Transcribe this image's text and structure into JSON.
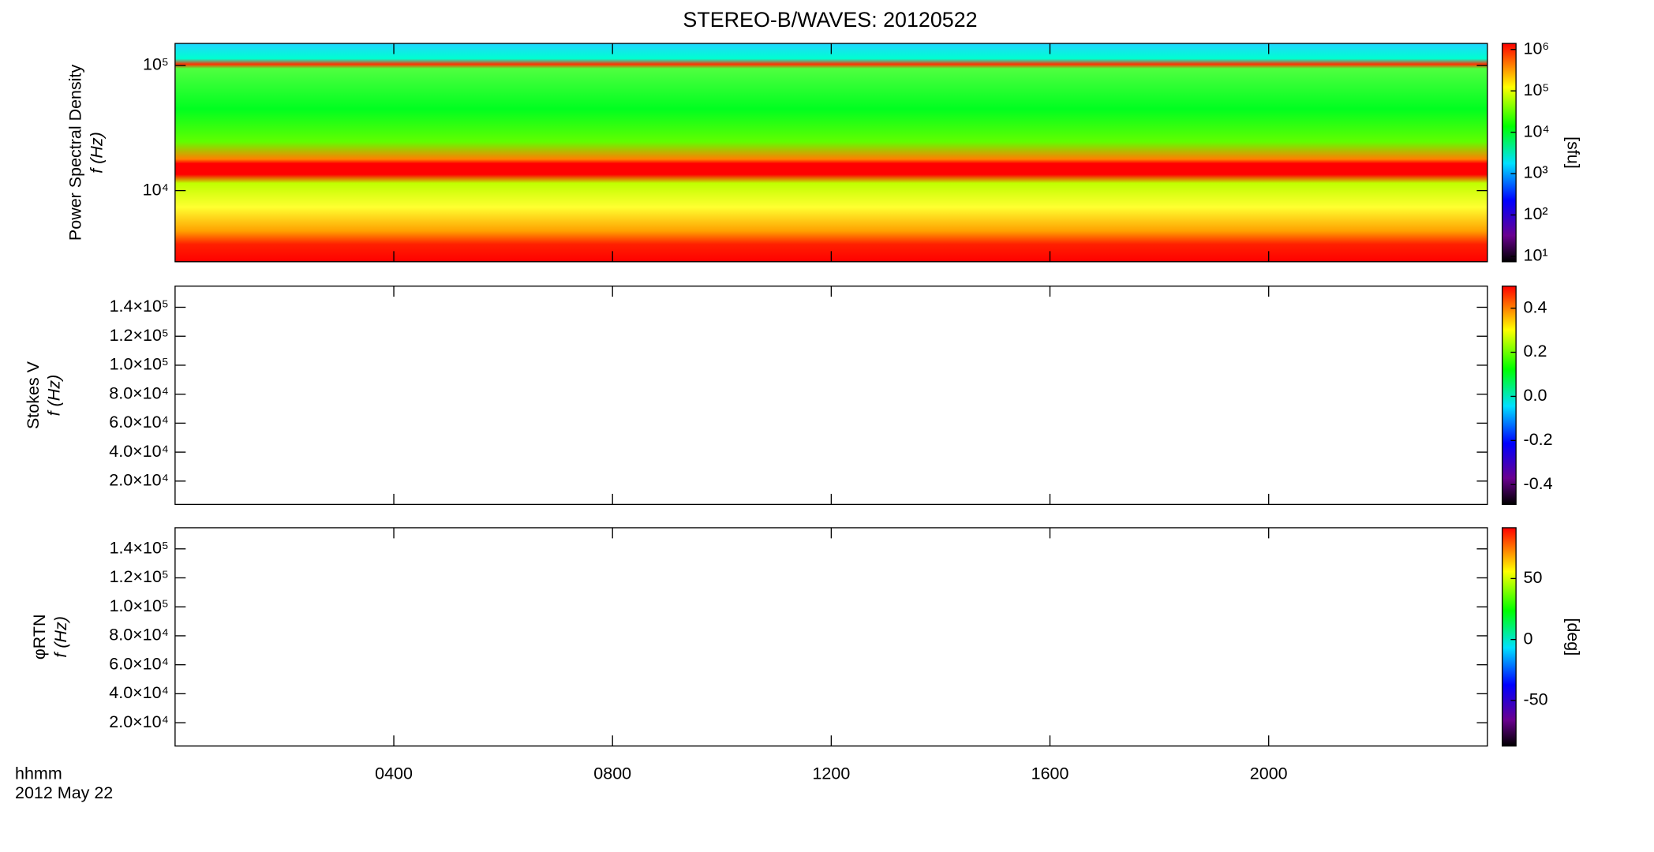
{
  "chart_data": [
    {
      "type": "heatmap",
      "title": "STEREO-B/WAVES: 20120522",
      "ylabel": [
        "Power Spectral Density",
        "f (Hz)"
      ],
      "log_y": true,
      "ylim": [
        2700,
        150000
      ],
      "yticks": [
        {
          "value": 10000,
          "label": "10⁴"
        },
        {
          "value": 100000,
          "label": "10⁵"
        }
      ],
      "colorbar": {
        "label": "[sfu]",
        "log": true,
        "lim": [
          7.4,
          1400000
        ],
        "ticks": [
          {
            "value": 10,
            "label": "10¹"
          },
          {
            "value": 100,
            "label": "10²"
          },
          {
            "value": 1000,
            "label": "10³"
          },
          {
            "value": 10000,
            "label": "10⁴"
          },
          {
            "value": 100000,
            "label": "10⁵"
          },
          {
            "value": 1000000,
            "label": "10⁶"
          }
        ]
      }
    },
    {
      "type": "heatmap",
      "ylabel": [
        "Stokes V",
        "f (Hz)"
      ],
      "ylim": [
        3900,
        154600
      ],
      "yticks": [
        {
          "value": 20000,
          "label": "2.0×10⁴"
        },
        {
          "value": 40000,
          "label": "4.0×10⁴"
        },
        {
          "value": 60000,
          "label": "6.0×10⁴"
        },
        {
          "value": 80000,
          "label": "8.0×10⁴"
        },
        {
          "value": 100000,
          "label": "1.0×10⁵"
        },
        {
          "value": 120000,
          "label": "1.2×10⁵"
        },
        {
          "value": 140000,
          "label": "1.4×10⁵"
        }
      ],
      "colorbar": {
        "lim": [
          -0.49,
          0.5
        ],
        "ticks": [
          -0.4,
          -0.2,
          {
            "value": 0,
            "label": "0.0"
          },
          0.2,
          0.4
        ]
      }
    },
    {
      "type": "heatmap",
      "ylabel": [
        "φRTN",
        "f (Hz)"
      ],
      "ylim": [
        3900,
        154600
      ],
      "yticks": [
        {
          "value": 20000,
          "label": "2.0×10⁴"
        },
        {
          "value": 40000,
          "label": "4.0×10⁴"
        },
        {
          "value": 60000,
          "label": "6.0×10⁴"
        },
        {
          "value": 80000,
          "label": "8.0×10⁴"
        },
        {
          "value": 100000,
          "label": "1.0×10⁵"
        },
        {
          "value": 120000,
          "label": "1.2×10⁵"
        },
        {
          "value": 140000,
          "label": "1.4×10⁵"
        }
      ],
      "colorbar": {
        "label": "[deg]",
        "lim": [
          -87.4,
          91.7
        ],
        "ticks": [
          -50,
          0,
          50
        ]
      },
      "xlabel": [
        "hhmm",
        "2012 May 22"
      ],
      "xlim": [
        0,
        24
      ],
      "xticks": [
        {
          "value": 4,
          "label": "0400"
        },
        {
          "value": 8,
          "label": "0800"
        },
        {
          "value": 12,
          "label": "1200"
        },
        {
          "value": 16,
          "label": "1600"
        },
        {
          "value": 20,
          "label": "2000"
        }
      ]
    }
  ]
}
